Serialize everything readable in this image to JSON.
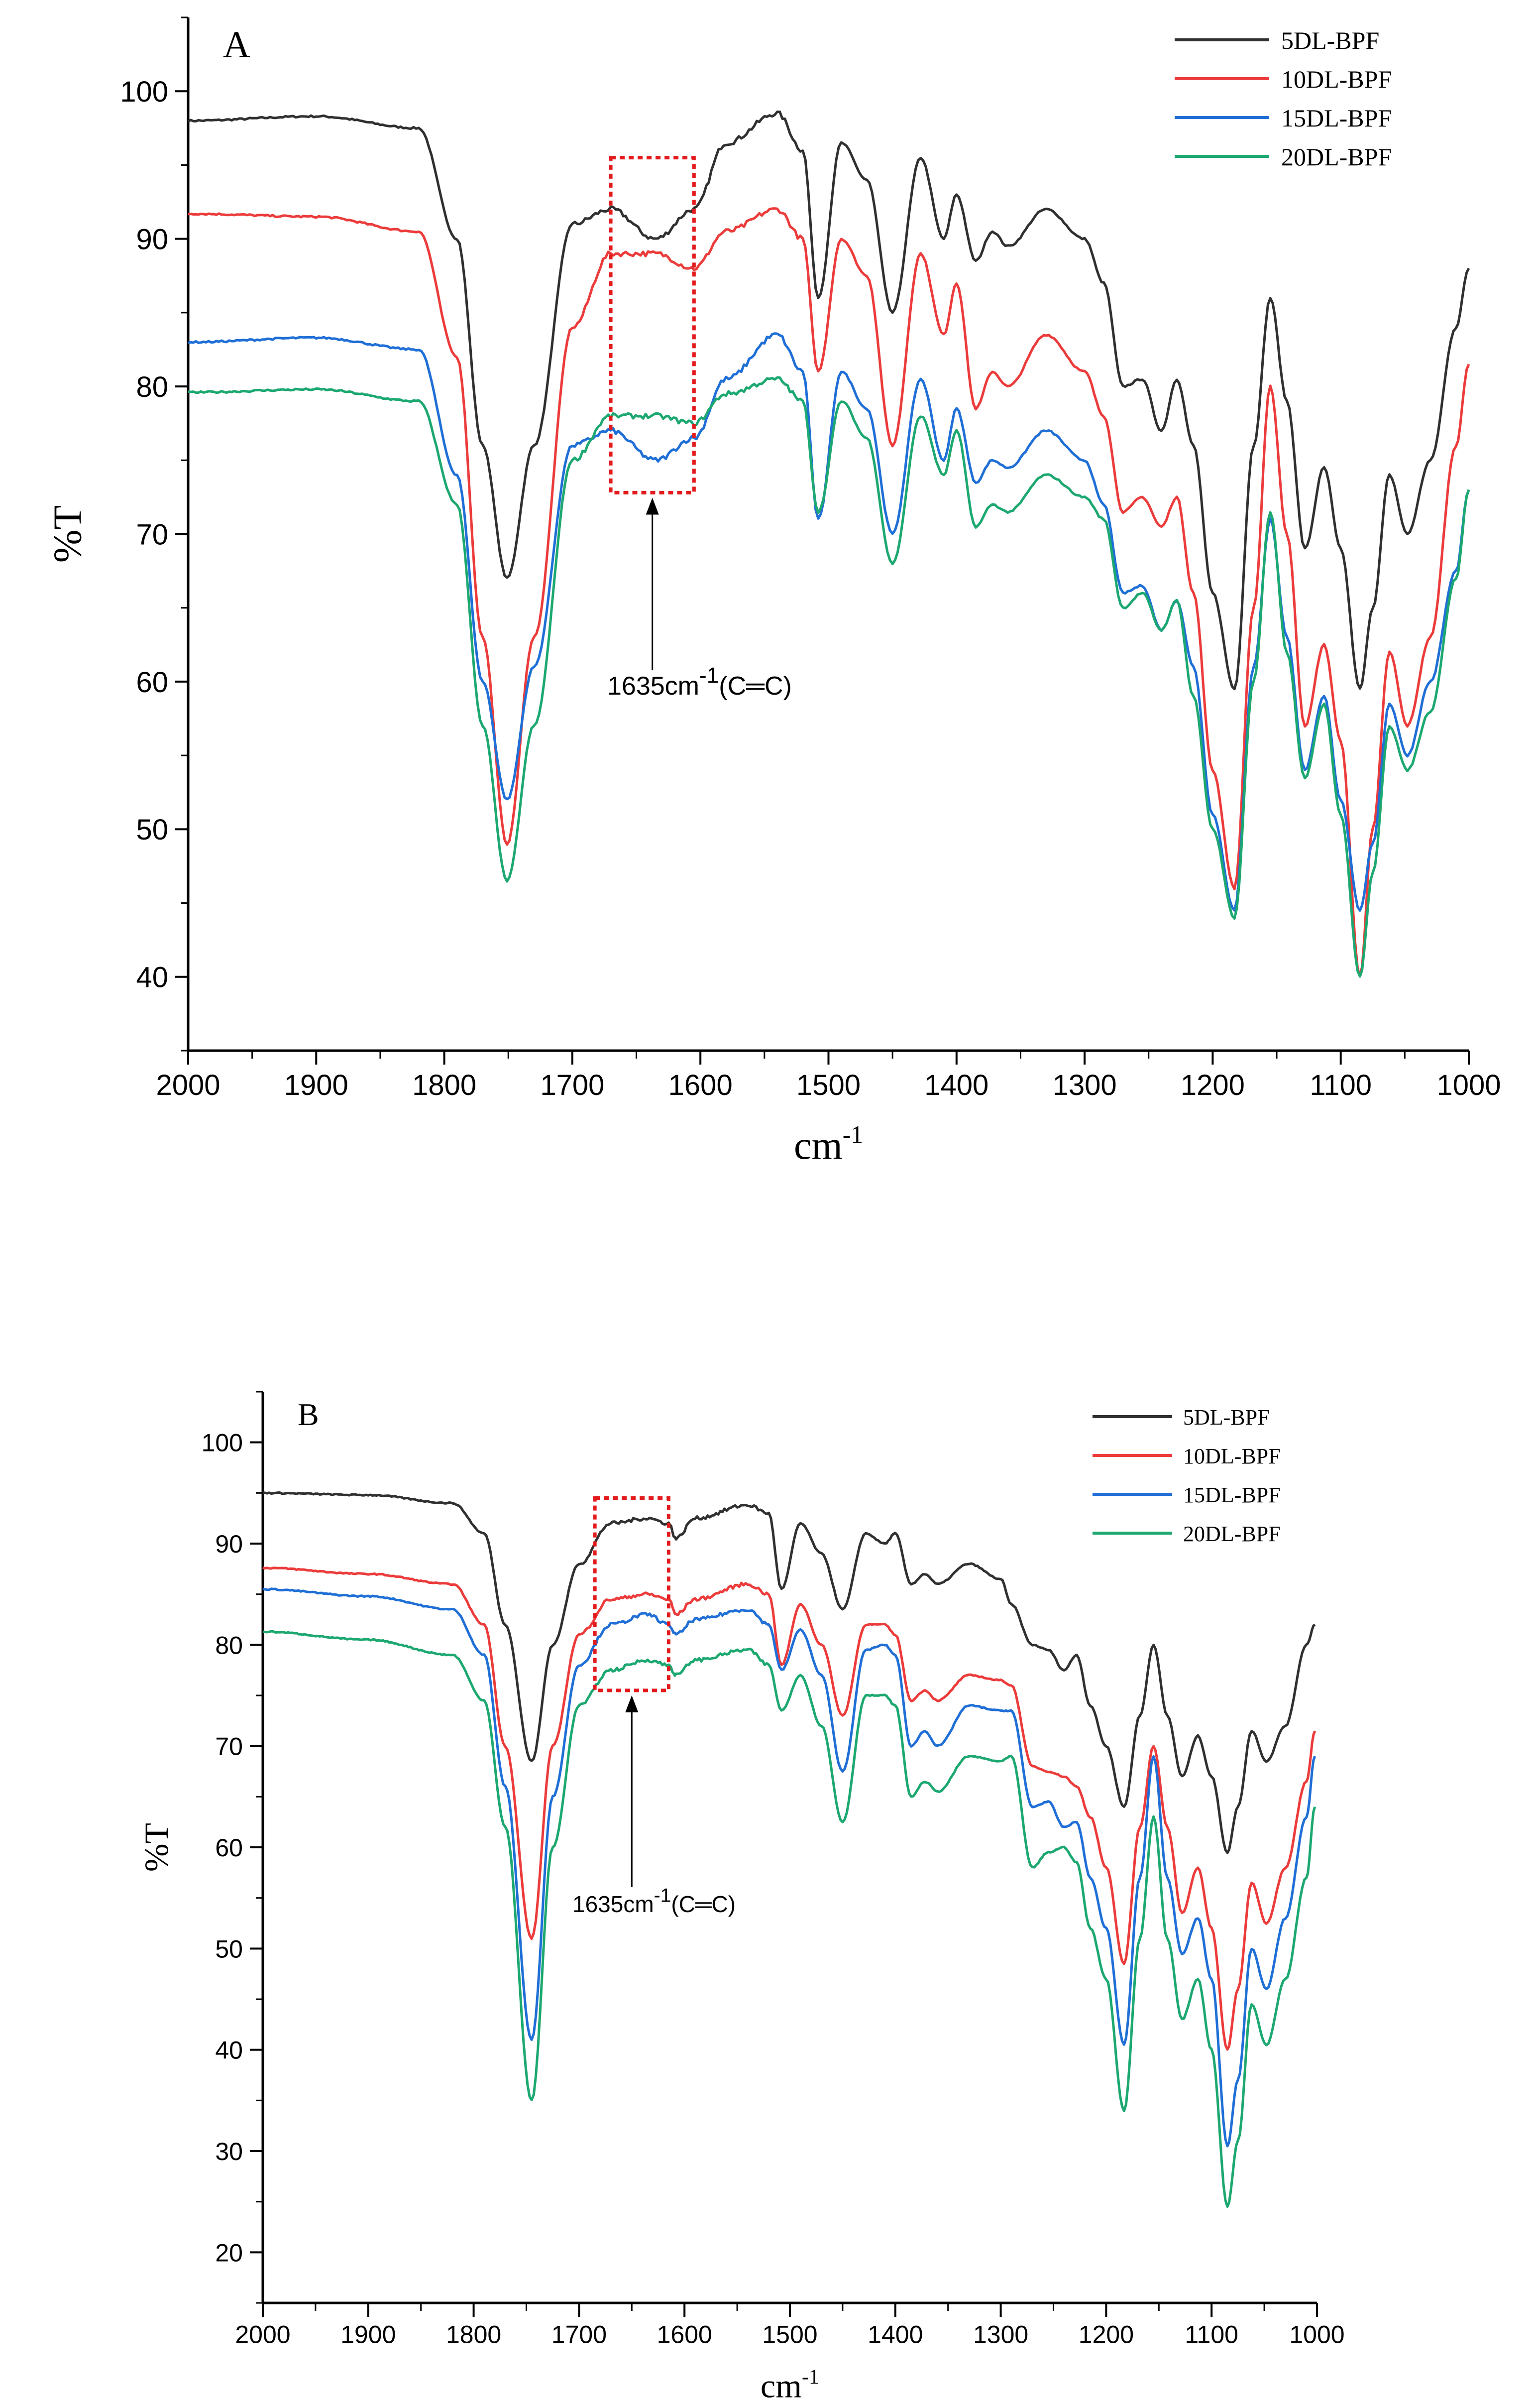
{
  "colors": {
    "series": [
      "#303030",
      "#ec3b3b",
      "#1f6fd6",
      "#1ca870"
    ],
    "axis": "#000000",
    "annotation_box": "#e31a1c"
  },
  "chart_data": [
    {
      "type": "line",
      "panel_label": "A",
      "xlabel": "cm",
      "xlabel_sup": "-1",
      "ylabel": "%T",
      "xlim": [
        2000,
        1000
      ],
      "ylim": [
        35,
        105
      ],
      "xticks": [
        "2000",
        "1900",
        "1800",
        "1700",
        "1600",
        "1500",
        "1400",
        "1300",
        "1200",
        "1100",
        "1000"
      ],
      "yticks": [
        "40",
        "50",
        "60",
        "70",
        "80",
        "90",
        "100"
      ],
      "legend_position": "top-right",
      "annotation": {
        "text_main": "1635cm",
        "text_sup": "-1",
        "text_tail": "(C═C)",
        "box_x": [
          1670,
          1605
        ]
      },
      "x": [
        2000,
        1900,
        1820,
        1790,
        1770,
        1751,
        1730,
        1700,
        1670,
        1635,
        1605,
        1580,
        1540,
        1520,
        1508,
        1490,
        1470,
        1450,
        1428,
        1410,
        1400,
        1385,
        1372,
        1360,
        1330,
        1300,
        1285,
        1270,
        1255,
        1240,
        1228,
        1215,
        1200,
        1183,
        1168,
        1155,
        1142,
        1128,
        1113,
        1100,
        1085,
        1075,
        1062,
        1048,
        1030,
        1010,
        1000
      ],
      "series": [
        {
          "name": "5DL-BPF",
          "values": [
            98.0,
            98.3,
            97.5,
            90.0,
            76.0,
            67.0,
            76.0,
            91.0,
            92.0,
            90.0,
            92.0,
            96.5,
            98.5,
            96.0,
            86.0,
            96.5,
            94.0,
            85.0,
            95.5,
            90.0,
            93.0,
            88.5,
            90.5,
            89.5,
            92.0,
            90.0,
            87.0,
            80.0,
            80.5,
            77.0,
            80.5,
            76.0,
            66.0,
            59.5,
            76.0,
            86.0,
            79.0,
            69.0,
            74.5,
            69.0,
            59.5,
            65.0,
            74.0,
            70.0,
            75.0,
            84.0,
            88.0
          ]
        },
        {
          "name": "10DL-BPF",
          "values": [
            91.7,
            91.5,
            90.5,
            82.0,
            63.0,
            49.0,
            63.0,
            84.0,
            89.0,
            89.0,
            88.0,
            90.5,
            92.0,
            90.0,
            81.0,
            90.0,
            87.5,
            76.0,
            89.0,
            83.5,
            87.0,
            78.5,
            81.0,
            80.0,
            83.5,
            81.0,
            78.0,
            71.5,
            72.5,
            70.5,
            72.5,
            66.0,
            54.0,
            46.0,
            65.0,
            80.0,
            70.0,
            57.0,
            62.5,
            56.0,
            40.0,
            50.0,
            62.0,
            57.0,
            63.0,
            76.0,
            81.5
          ]
        },
        {
          "name": "15DL-BPF",
          "values": [
            83.0,
            83.3,
            82.5,
            74.0,
            60.0,
            52.0,
            61.0,
            76.0,
            77.0,
            75.0,
            76.5,
            80.5,
            83.5,
            81.0,
            71.0,
            81.0,
            78.5,
            70.0,
            80.5,
            75.0,
            78.5,
            73.5,
            75.0,
            74.5,
            77.0,
            75.0,
            72.0,
            66.0,
            66.5,
            63.5,
            65.5,
            61.0,
            51.0,
            44.5,
            61.0,
            71.0,
            63.0,
            54.0,
            59.0,
            52.0,
            44.5,
            49.0,
            58.5,
            55.0,
            60.0,
            67.5,
            73.0
          ]
        },
        {
          "name": "20DL-BPF",
          "values": [
            79.6,
            79.8,
            79.0,
            72.0,
            57.0,
            46.5,
            57.0,
            75.0,
            78.0,
            78.0,
            77.5,
            79.5,
            80.5,
            79.0,
            71.5,
            79.0,
            76.5,
            68.0,
            78.0,
            74.0,
            77.0,
            70.5,
            72.0,
            71.5,
            74.0,
            72.5,
            71.0,
            65.0,
            66.0,
            63.5,
            65.5,
            59.0,
            50.0,
            44.0,
            60.0,
            71.5,
            62.0,
            53.5,
            58.5,
            51.0,
            40.0,
            47.0,
            57.0,
            54.0,
            58.0,
            67.0,
            73.0
          ]
        }
      ]
    },
    {
      "type": "line",
      "panel_label": "B",
      "xlabel": "cm",
      "xlabel_sup": "-1",
      "ylabel": "%T",
      "xlim": [
        2000,
        1000
      ],
      "ylim": [
        15,
        105
      ],
      "xticks": [
        "2000",
        "1900",
        "1800",
        "1700",
        "1600",
        "1500",
        "1400",
        "1300",
        "1200",
        "1100",
        "1000"
      ],
      "yticks": [
        "20",
        "30",
        "40",
        "50",
        "60",
        "70",
        "80",
        "90",
        "100"
      ],
      "legend_position": "top-right",
      "annotation": {
        "text_main": "1635cm",
        "text_sup": "-1",
        "text_tail": "(C═C)",
        "box_x": [
          1685,
          1615
        ]
      },
      "x": [
        2000,
        1900,
        1820,
        1790,
        1770,
        1745,
        1725,
        1700,
        1670,
        1635,
        1615,
        1608,
        1590,
        1540,
        1520,
        1508,
        1490,
        1470,
        1450,
        1428,
        1410,
        1400,
        1385,
        1372,
        1360,
        1330,
        1300,
        1290,
        1270,
        1255,
        1240,
        1228,
        1215,
        1200,
        1183,
        1168,
        1155,
        1142,
        1128,
        1113,
        1100,
        1085,
        1075,
        1062,
        1048,
        1030,
        1010,
        1002
      ],
      "series": [
        {
          "name": "5DL-BPF",
          "values": [
            95.0,
            94.8,
            94.0,
            91.0,
            82.0,
            68.5,
            80.0,
            88.0,
            92.0,
            92.5,
            92.0,
            90.5,
            92.5,
            93.8,
            93.0,
            85.5,
            92.0,
            89.0,
            83.5,
            91.0,
            90.0,
            91.0,
            86.0,
            87.0,
            86.0,
            88.0,
            86.5,
            84.0,
            80.0,
            79.5,
            77.5,
            79.0,
            74.0,
            70.0,
            64.0,
            73.0,
            80.0,
            73.0,
            67.0,
            71.0,
            67.0,
            59.5,
            64.0,
            71.5,
            68.5,
            72.0,
            80.0,
            82.0
          ]
        },
        {
          "name": "10DL-BPF",
          "values": [
            87.6,
            87.0,
            86.0,
            82.0,
            70.0,
            51.0,
            70.0,
            81.0,
            84.5,
            85.0,
            84.5,
            83.0,
            84.5,
            86.0,
            85.0,
            78.0,
            84.0,
            80.0,
            73.0,
            82.0,
            82.0,
            81.0,
            74.5,
            75.5,
            74.5,
            77.0,
            76.5,
            76.0,
            68.0,
            67.5,
            67.0,
            66.0,
            63.0,
            58.0,
            48.5,
            62.0,
            70.0,
            62.0,
            53.5,
            58.0,
            52.0,
            40.0,
            46.0,
            56.5,
            52.5,
            58.0,
            66.5,
            71.5
          ]
        },
        {
          "name": "15DL-BPF",
          "values": [
            85.5,
            84.8,
            83.5,
            79.0,
            66.0,
            41.0,
            65.0,
            78.0,
            82.0,
            83.0,
            82.0,
            81.0,
            82.5,
            83.5,
            82.0,
            77.5,
            81.5,
            77.0,
            67.5,
            79.5,
            80.0,
            79.0,
            70.0,
            71.5,
            70.0,
            74.0,
            73.5,
            73.5,
            64.0,
            64.5,
            62.0,
            62.5,
            57.0,
            52.0,
            40.5,
            57.0,
            69.0,
            57.0,
            49.5,
            53.0,
            47.0,
            30.5,
            37.0,
            50.0,
            46.0,
            53.0,
            63.0,
            69.0
          ]
        },
        {
          "name": "20DL-BPF",
          "values": [
            81.3,
            80.5,
            79.0,
            74.5,
            62.0,
            35.0,
            60.0,
            74.0,
            77.5,
            78.5,
            78.0,
            77.0,
            78.5,
            79.5,
            78.0,
            73.5,
            77.0,
            72.0,
            62.5,
            75.0,
            75.0,
            74.0,
            65.0,
            66.5,
            65.5,
            69.0,
            68.5,
            69.0,
            58.0,
            59.5,
            60.0,
            58.5,
            52.0,
            47.0,
            34.0,
            51.0,
            63.0,
            51.0,
            43.0,
            47.0,
            40.0,
            24.5,
            31.0,
            44.5,
            40.5,
            47.0,
            57.0,
            64.0
          ]
        }
      ]
    }
  ]
}
